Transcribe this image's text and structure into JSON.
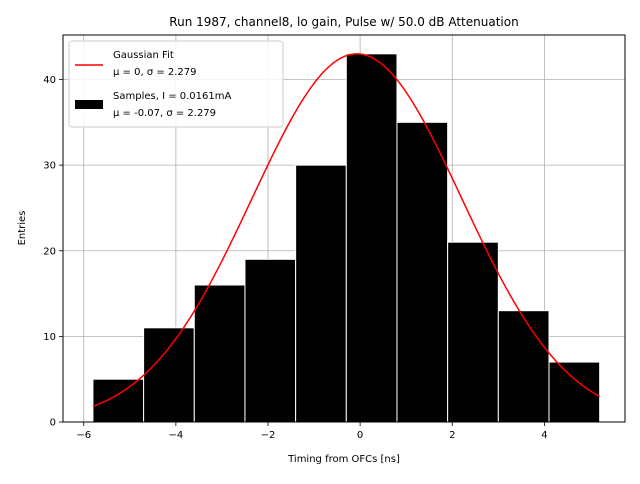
{
  "chart_data": {
    "type": "bar",
    "title": "Run 1987, channel8, lo gain, Pulse w/ 50.0 dB Attenuation",
    "xlabel": "Timing from OFCs [ns]",
    "ylabel": "Entries",
    "xlim": [
      -6.45,
      5.75
    ],
    "ylim": [
      0,
      45.2
    ],
    "xticks": [
      -6,
      -4,
      -2,
      0,
      2,
      4
    ],
    "xtick_labels": [
      "−6",
      "−4",
      "−2",
      "0",
      "2",
      "4"
    ],
    "yticks": [
      0,
      10,
      20,
      30,
      40
    ],
    "ytick_labels": [
      "0",
      "10",
      "20",
      "30",
      "40"
    ],
    "grid": true,
    "legend_position": "top-left",
    "histogram": {
      "name": "Samples, I = 0.0161mA",
      "stats": "μ = -0.07, σ = 2.279",
      "color": "#000000",
      "edge_color": "#ffffff",
      "bin_edges": [
        -5.8,
        -4.7,
        -3.6,
        -2.5,
        -1.4,
        -0.3,
        0.8,
        1.9,
        3.0,
        4.1,
        5.2
      ],
      "counts": [
        5,
        11,
        16,
        19,
        30,
        43,
        35,
        21,
        13,
        7
      ]
    },
    "fit": {
      "name": "Gaussian Fit",
      "stats": "μ = 0, σ = 2.279",
      "color": "#ff0000",
      "mu": -0.07,
      "sigma": 2.279,
      "amplitude": 43,
      "x_range": [
        -5.8,
        5.2
      ]
    }
  }
}
